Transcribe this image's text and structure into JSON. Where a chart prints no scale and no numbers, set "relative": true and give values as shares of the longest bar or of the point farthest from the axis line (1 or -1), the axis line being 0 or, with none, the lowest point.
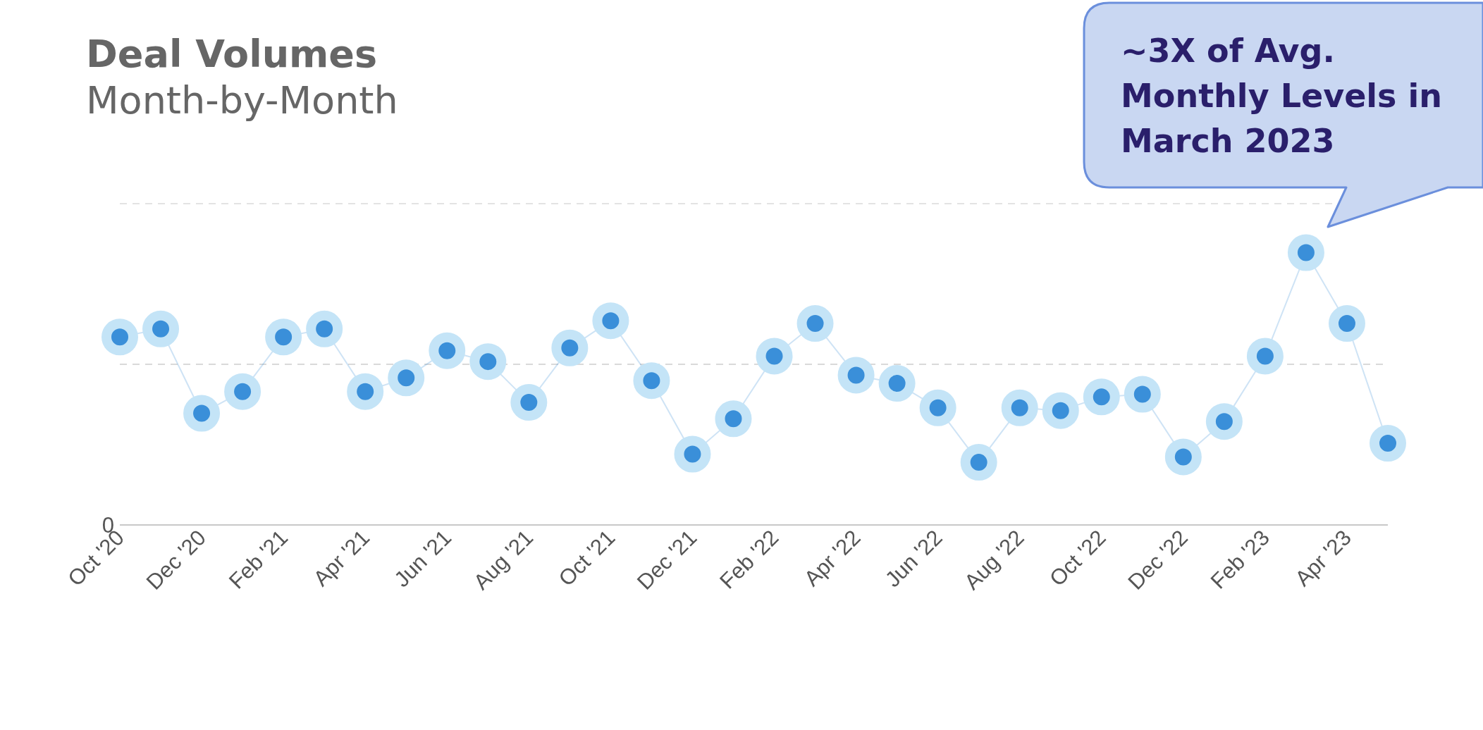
{
  "chart_data": {
    "type": "line",
    "title": "Deal Volumes",
    "subtitle": "Month-by-Month",
    "relative": true,
    "categories": [
      "Oct '20",
      null,
      "Dec '20",
      null,
      "Feb '21",
      null,
      "Apr '21",
      null,
      "Jun '21",
      null,
      "Aug '21",
      null,
      "Oct '21",
      null,
      "Dec '21",
      null,
      "Feb '22",
      null,
      "Apr '22",
      null,
      "Jun '22",
      null,
      "Aug '22",
      null,
      "Oct '22",
      null,
      "Dec '22",
      null,
      "Feb '23",
      null,
      "Apr '23",
      null
    ],
    "series": [
      {
        "color": "#3a8fd9",
        "values": [
          0.69,
          0.72,
          0.41,
          0.49,
          0.69,
          0.72,
          0.49,
          0.54,
          0.64,
          0.6,
          0.45,
          0.65,
          0.75,
          0.53,
          0.26,
          0.39,
          0.62,
          0.74,
          0.55,
          0.52,
          0.43,
          0.23,
          0.43,
          0.42,
          0.47,
          0.48,
          0.25,
          0.38,
          0.62,
          1,
          0.74,
          0.3
        ]
      }
    ],
    "marker": "circle",
    "line_style": "solid",
    "grid": false,
    "legend": false,
    "ref_lines": [
      {
        "axis": "y",
        "value": 0.59,
        "color": "#d9d9d9",
        "line_style": "dashed"
      },
      {
        "axis": "y",
        "value": 1.18,
        "color": "#e3e3e3",
        "line_style": "dashed"
      }
    ],
    "annotations": [
      "0",
      "~3X of Avg. Monthly Levels in March 2023"
    ]
  }
}
